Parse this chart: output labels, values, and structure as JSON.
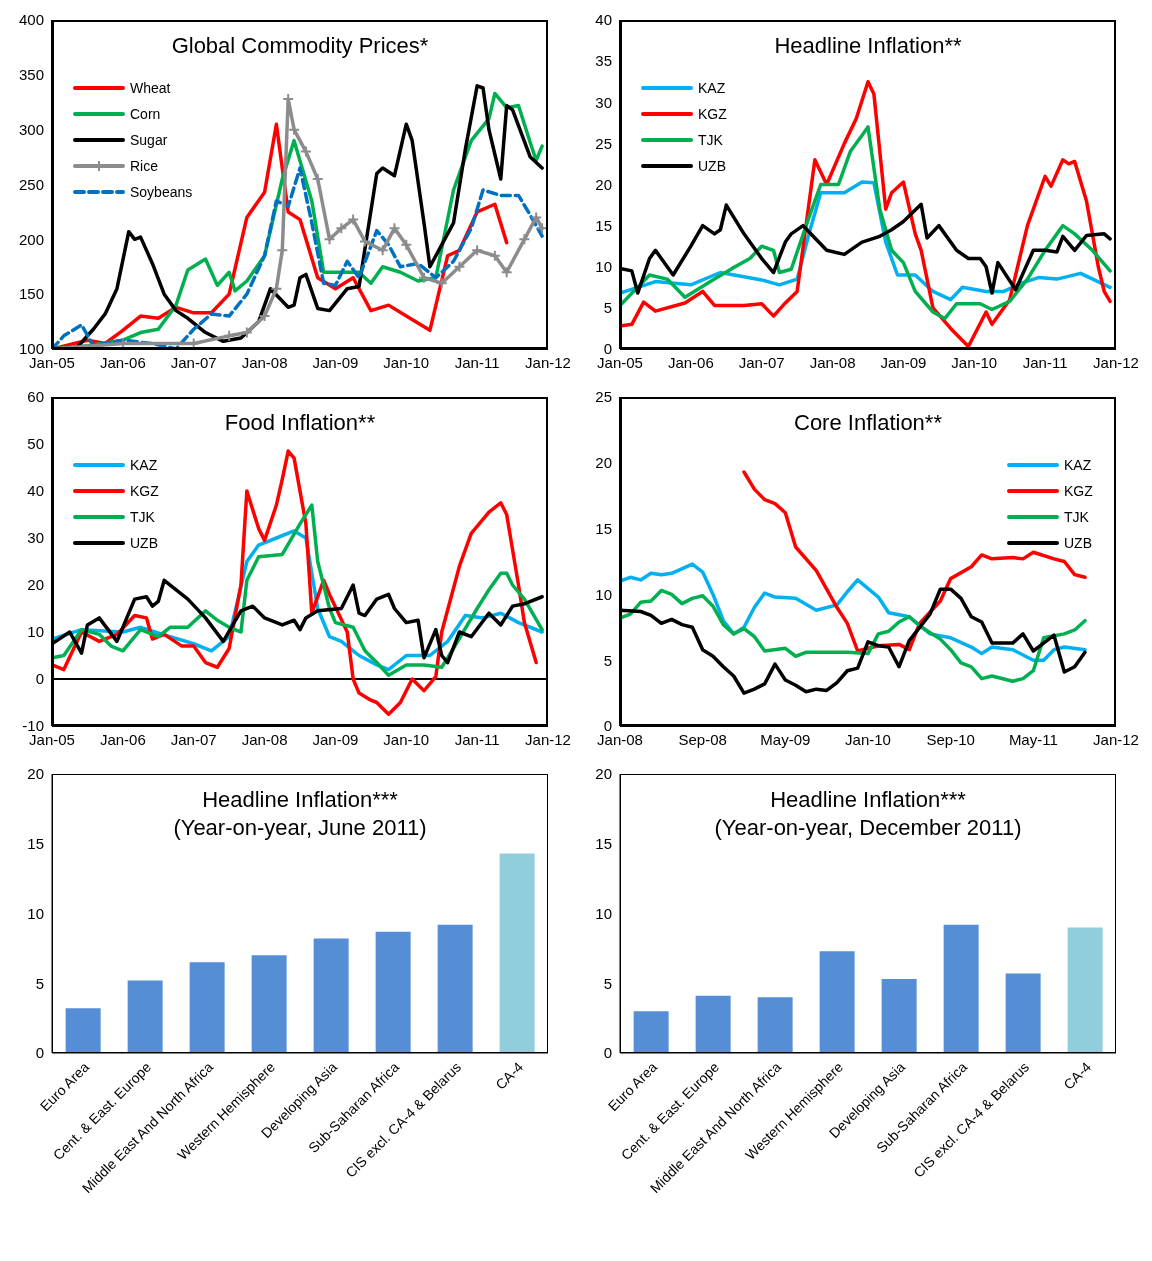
{
  "chart_data": [
    {
      "type": "line",
      "title": "Global Commodity Prices*",
      "xlim": [
        "2005-01",
        "2012-01"
      ],
      "xticks": [
        {
          "value": "2005-01",
          "label": "Jan-05"
        },
        {
          "value": "2006-01",
          "label": "Jan-06"
        },
        {
          "value": "2007-01",
          "label": "Jan-07"
        },
        {
          "value": "2008-01",
          "label": "Jan-08"
        },
        {
          "value": "2009-01",
          "label": "Jan-09"
        },
        {
          "value": "2010-01",
          "label": "Jan-10"
        },
        {
          "value": "2011-01",
          "label": "Jan-11"
        },
        {
          "value": "2012-01",
          "label": "Jan-12"
        }
      ],
      "ylim": [
        100,
        400
      ],
      "yticks": [
        100,
        150,
        200,
        250,
        300,
        350,
        400
      ],
      "grid": false,
      "legend": "top left",
      "marker": "none",
      "line_style": "solid",
      "series": [
        {
          "name": "Wheat",
          "color": "#ff0000",
          "x": [
            "2005-01",
            "2005-07",
            "2005-10",
            "2006-01",
            "2006-04",
            "2006-07",
            "2006-10",
            "2007-01",
            "2007-04",
            "2007-07",
            "2007-10",
            "2008-01",
            "2008-03",
            "2008-05",
            "2008-07",
            "2008-10",
            "2009-01",
            "2009-04",
            "2009-07",
            "2009-10",
            "2010-01",
            "2010-05",
            "2010-08",
            "2010-10",
            "2011-01",
            "2011-04",
            "2011-06"
          ],
          "values": [
            100,
            108,
            105,
            117,
            130,
            128,
            138,
            133,
            133,
            150,
            220,
            243,
            305,
            225,
            218,
            165,
            155,
            165,
            135,
            140,
            130,
            117,
            185,
            190,
            225,
            232,
            197
          ]
        },
        {
          "name": "Corn",
          "color": "#00b050",
          "x": [
            "2005-01",
            "2005-07",
            "2006-01",
            "2006-04",
            "2006-07",
            "2006-10",
            "2006-12",
            "2007-03",
            "2007-05",
            "2007-07",
            "2007-08",
            "2007-10",
            "2008-01",
            "2008-04",
            "2008-06",
            "2008-09",
            "2008-11",
            "2009-02",
            "2009-05",
            "2009-07",
            "2009-09",
            "2009-12",
            "2010-03",
            "2010-06",
            "2010-09",
            "2010-12",
            "2011-03",
            "2011-04",
            "2011-06",
            "2011-08",
            "2011-10",
            "2011-11",
            "2011-12"
          ],
          "values": [
            100,
            103,
            108,
            115,
            118,
            140,
            172,
            182,
            158,
            170,
            153,
            162,
            185,
            255,
            290,
            235,
            170,
            170,
            170,
            160,
            175,
            170,
            162,
            165,
            245,
            290,
            310,
            333,
            320,
            322,
            288,
            272,
            285
          ]
        },
        {
          "name": "Sugar",
          "color": "#000000",
          "x": [
            "2005-01",
            "2005-05",
            "2005-08",
            "2005-10",
            "2005-12",
            "2006-02",
            "2006-03",
            "2006-04",
            "2006-06",
            "2006-08",
            "2006-10",
            "2006-12",
            "2007-03",
            "2007-06",
            "2007-09",
            "2007-12",
            "2008-02",
            "2008-05",
            "2008-06",
            "2008-07",
            "2008-08",
            "2008-10",
            "2008-12",
            "2009-03",
            "2009-05",
            "2009-08",
            "2009-09",
            "2009-11",
            "2010-01",
            "2010-02",
            "2010-04",
            "2010-05",
            "2010-09",
            "2010-11",
            "2011-01",
            "2011-02",
            "2011-03",
            "2011-05",
            "2011-06",
            "2011-07",
            "2011-10",
            "2011-12"
          ],
          "values": [
            100,
            100,
            118,
            132,
            155,
            207,
            200,
            202,
            178,
            150,
            135,
            128,
            115,
            107,
            110,
            125,
            155,
            138,
            140,
            165,
            168,
            137,
            135,
            155,
            157,
            260,
            265,
            258,
            305,
            290,
            215,
            175,
            215,
            282,
            340,
            338,
            300,
            255,
            322,
            318,
            275,
            265
          ]
        },
        {
          "name": "Rice",
          "color": "#8c8c8c",
          "marker": "cross",
          "x": [
            "2005-01",
            "2006-01",
            "2007-01",
            "2007-07",
            "2007-10",
            "2008-01",
            "2008-03",
            "2008-04",
            "2008-05",
            "2008-06",
            "2008-08",
            "2008-10",
            "2008-12",
            "2009-02",
            "2009-04",
            "2009-06",
            "2009-09",
            "2009-11",
            "2010-01",
            "2010-04",
            "2010-07",
            "2010-10",
            "2011-01",
            "2011-04",
            "2011-06",
            "2011-09",
            "2011-11",
            "2011-12"
          ],
          "values": [
            100,
            105,
            105,
            112,
            115,
            130,
            155,
            190,
            328,
            300,
            280,
            255,
            200,
            210,
            218,
            198,
            190,
            210,
            195,
            165,
            160,
            175,
            190,
            185,
            170,
            200,
            220,
            210
          ]
        },
        {
          "name": "Soybeans",
          "color": "#0070c0",
          "line_style": "dashed",
          "x": [
            "2005-01",
            "2005-03",
            "2005-06",
            "2005-08",
            "2006-01",
            "2006-06",
            "2006-10",
            "2007-01",
            "2007-04",
            "2007-07",
            "2007-10",
            "2008-01",
            "2008-03",
            "2008-05",
            "2008-07",
            "2008-09",
            "2008-11",
            "2009-01",
            "2009-03",
            "2009-05",
            "2009-08",
            "2009-10",
            "2009-12",
            "2010-03",
            "2010-06",
            "2010-09",
            "2010-12",
            "2011-02",
            "2011-05",
            "2011-08",
            "2011-10",
            "2011-12"
          ],
          "values": [
            100,
            112,
            122,
            103,
            108,
            105,
            100,
            118,
            132,
            130,
            150,
            185,
            235,
            230,
            265,
            215,
            160,
            158,
            180,
            165,
            208,
            195,
            175,
            178,
            165,
            180,
            210,
            245,
            240,
            240,
            222,
            203
          ]
        }
      ]
    },
    {
      "type": "line",
      "title": "Headline Inflation**",
      "xlim": [
        "2005-01",
        "2012-01"
      ],
      "xticks": [
        {
          "value": "2005-01",
          "label": "Jan-05"
        },
        {
          "value": "2006-01",
          "label": "Jan-06"
        },
        {
          "value": "2007-01",
          "label": "Jan-07"
        },
        {
          "value": "2008-01",
          "label": "Jan-08"
        },
        {
          "value": "2009-01",
          "label": "Jan-09"
        },
        {
          "value": "2010-01",
          "label": "Jan-10"
        },
        {
          "value": "2011-01",
          "label": "Jan-11"
        },
        {
          "value": "2012-01",
          "label": "Jan-12"
        }
      ],
      "ylim": [
        0,
        40
      ],
      "yticks": [
        0,
        5,
        10,
        15,
        20,
        25,
        30,
        35,
        40
      ],
      "grid": false,
      "legend": "top left",
      "marker": "none",
      "line_style": "solid",
      "series": [
        {
          "name": "KAZ",
          "color": "#00b0f0",
          "x": [
            "2005-01",
            "2005-07",
            "2006-01",
            "2006-06",
            "2007-01",
            "2007-04",
            "2007-07",
            "2007-09",
            "2007-11",
            "2008-03",
            "2008-06",
            "2008-08",
            "2008-10",
            "2008-12",
            "2009-03",
            "2009-06",
            "2009-09",
            "2009-11",
            "2010-03",
            "2010-06",
            "2010-09",
            "2010-12",
            "2011-03",
            "2011-07",
            "2011-12"
          ],
          "values": [
            6.8,
            8.2,
            7.8,
            9.3,
            8.4,
            7.8,
            8.5,
            14,
            19,
            19,
            20.3,
            20.2,
            13,
            9,
            9,
            7,
            6,
            7.5,
            7,
            7,
            8,
            8.7,
            8.5,
            9.2,
            7.5
          ]
        },
        {
          "name": "KGZ",
          "color": "#ff0000",
          "x": [
            "2005-01",
            "2005-03",
            "2005-05",
            "2005-07",
            "2005-12",
            "2006-03",
            "2006-05",
            "2006-10",
            "2007-01",
            "2007-03",
            "2007-05",
            "2007-07",
            "2007-10",
            "2007-12",
            "2008-03",
            "2008-05",
            "2008-07",
            "2008-08",
            "2008-10",
            "2008-11",
            "2009-01",
            "2009-03",
            "2009-04",
            "2009-06",
            "2009-09",
            "2009-12",
            "2010-03",
            "2010-04",
            "2010-07",
            "2010-10",
            "2011-01",
            "2011-02",
            "2011-04",
            "2011-05",
            "2011-06",
            "2011-08",
            "2011-10",
            "2011-11",
            "2011-12"
          ],
          "values": [
            2.8,
            3,
            5.7,
            4.6,
            5.6,
            7,
            5.3,
            5.3,
            5.5,
            4,
            5.6,
            7,
            23,
            20,
            25,
            28,
            32.5,
            31,
            17,
            19,
            20.3,
            14,
            12,
            5,
            2.5,
            0.3,
            4.5,
            3,
            6,
            15,
            21,
            19.8,
            23,
            22.5,
            22.8,
            18,
            10,
            7,
            5.8
          ]
        },
        {
          "name": "TJK",
          "color": "#00b050",
          "x": [
            "2005-01",
            "2005-06",
            "2005-09",
            "2005-12",
            "2006-05",
            "2006-08",
            "2006-11",
            "2007-01",
            "2007-03",
            "2007-04",
            "2007-06",
            "2007-09",
            "2007-11",
            "2008-02",
            "2008-04",
            "2008-06",
            "2008-07",
            "2008-09",
            "2008-11",
            "2009-01",
            "2009-03",
            "2009-06",
            "2009-08",
            "2009-10",
            "2010-02",
            "2010-04",
            "2010-07",
            "2010-10",
            "2011-01",
            "2011-04",
            "2011-06",
            "2011-09",
            "2011-12"
          ],
          "values": [
            5.3,
            9,
            8.5,
            6.3,
            8.5,
            9.8,
            11,
            12.5,
            12,
            9.3,
            9.7,
            16,
            20,
            20,
            24,
            26,
            27,
            17,
            12,
            10.5,
            7,
            4.5,
            3.7,
            5.5,
            5.5,
            4.8,
            5.8,
            8.5,
            12,
            15,
            14,
            12,
            9.5
          ]
        },
        {
          "name": "UZB",
          "color": "#000000",
          "x": [
            "2005-01",
            "2005-03",
            "2005-04",
            "2005-06",
            "2005-07",
            "2005-10",
            "2006-01",
            "2006-03",
            "2006-05",
            "2006-06",
            "2006-07",
            "2006-10",
            "2007-01",
            "2007-03",
            "2007-05",
            "2007-06",
            "2007-08",
            "2007-10",
            "2007-12",
            "2008-03",
            "2008-05",
            "2008-06",
            "2008-09",
            "2008-11",
            "2009-01",
            "2009-04",
            "2009-05",
            "2009-07",
            "2009-10",
            "2009-12",
            "2010-02",
            "2010-03",
            "2010-04",
            "2010-05",
            "2010-08",
            "2010-11",
            "2011-01",
            "2011-03",
            "2011-04",
            "2011-06",
            "2011-08",
            "2011-11",
            "2011-12"
          ],
          "values": [
            9.8,
            9.5,
            6.8,
            11,
            12,
            9,
            12.5,
            15,
            14,
            14.5,
            17.5,
            14,
            11,
            9.3,
            13,
            14,
            15,
            13.5,
            12,
            11.5,
            12.5,
            13,
            13.7,
            14.5,
            15.5,
            17.6,
            13.5,
            15,
            12,
            11,
            11,
            10,
            6.8,
            10.5,
            7.2,
            12,
            12,
            11.8,
            13.7,
            12,
            13.8,
            14,
            13.4
          ]
        }
      ]
    },
    {
      "type": "line",
      "title": "Food Inflation**",
      "xlim": [
        "2005-01",
        "2012-01"
      ],
      "xticks": [
        {
          "value": "2005-01",
          "label": "Jan-05"
        },
        {
          "value": "2006-01",
          "label": "Jan-06"
        },
        {
          "value": "2007-01",
          "label": "Jan-07"
        },
        {
          "value": "2008-01",
          "label": "Jan-08"
        },
        {
          "value": "2009-01",
          "label": "Jan-09"
        },
        {
          "value": "2010-01",
          "label": "Jan-10"
        },
        {
          "value": "2011-01",
          "label": "Jan-11"
        },
        {
          "value": "2012-01",
          "label": "Jan-12"
        }
      ],
      "ylim": [
        -10,
        60
      ],
      "yticks": [
        -10,
        0,
        10,
        20,
        30,
        40,
        50,
        60
      ],
      "grid": false,
      "legend": "top left",
      "marker": "none",
      "line_style": "solid",
      "ref_lines": [
        {
          "axis": "y",
          "value": 0,
          "color": "#000000",
          "line_style": "solid"
        }
      ],
      "series": [
        {
          "name": "KAZ",
          "color": "#00b0f0",
          "x": [
            "2005-01",
            "2005-06",
            "2006-01",
            "2006-04",
            "2006-09",
            "2007-01",
            "2007-04",
            "2007-07",
            "2007-10",
            "2007-12",
            "2008-03",
            "2008-06",
            "2008-08",
            "2008-10",
            "2008-12",
            "2009-02",
            "2009-05",
            "2009-08",
            "2009-10",
            "2010-01",
            "2010-05",
            "2010-08",
            "2010-11",
            "2011-02",
            "2011-05",
            "2011-08",
            "2011-12"
          ],
          "values": [
            8.5,
            10.5,
            10,
            11,
            9,
            7.5,
            6,
            9,
            25,
            28.5,
            30,
            31.5,
            30,
            15,
            9,
            8,
            5,
            3,
            2,
            5,
            5,
            8,
            13.5,
            13,
            14,
            12,
            10
          ]
        },
        {
          "name": "KGZ",
          "color": "#ff0000",
          "x": [
            "2005-01",
            "2005-03",
            "2005-06",
            "2005-09",
            "2005-12",
            "2006-03",
            "2006-05",
            "2006-06",
            "2006-08",
            "2006-11",
            "2007-01",
            "2007-03",
            "2007-05",
            "2007-07",
            "2007-09",
            "2007-10",
            "2007-12",
            "2008-01",
            "2008-03",
            "2008-04",
            "2008-05",
            "2008-06",
            "2008-08",
            "2008-09",
            "2008-11",
            "2008-12",
            "2009-03",
            "2009-04",
            "2009-05",
            "2009-07",
            "2009-08",
            "2009-10",
            "2009-12",
            "2010-02",
            "2010-04",
            "2010-06",
            "2010-07",
            "2010-10",
            "2010-12",
            "2011-03",
            "2011-05",
            "2011-06",
            "2011-08",
            "2011-09",
            "2011-11"
          ],
          "values": [
            3,
            2,
            10,
            8,
            9.5,
            13.5,
            13,
            8.5,
            9.5,
            7,
            7,
            3.5,
            2.5,
            6.5,
            20,
            40,
            32,
            29.5,
            37,
            42.5,
            48.5,
            47,
            33,
            14,
            21,
            18,
            10,
            0,
            -3,
            -4.5,
            -5,
            -7.5,
            -5,
            0,
            -2.5,
            0.5,
            10,
            24,
            31,
            35.5,
            37.5,
            35,
            20,
            12,
            3.5
          ]
        },
        {
          "name": "TJK",
          "color": "#00b050",
          "x": [
            "2005-01",
            "2005-03",
            "2005-06",
            "2005-09",
            "2005-11",
            "2006-01",
            "2006-04",
            "2006-07",
            "2006-09",
            "2006-12",
            "2007-03",
            "2007-05",
            "2007-07",
            "2007-09",
            "2007-10",
            "2007-12",
            "2008-04",
            "2008-07",
            "2008-09",
            "2008-10",
            "2008-12",
            "2009-01",
            "2009-04",
            "2009-06",
            "2009-08",
            "2009-10",
            "2010-01",
            "2010-04",
            "2010-07",
            "2010-09",
            "2011-01",
            "2011-03",
            "2011-05",
            "2011-06",
            "2011-07",
            "2011-09",
            "2011-12"
          ],
          "values": [
            4.5,
            5,
            10.5,
            9.5,
            7,
            6,
            10.5,
            9,
            11,
            11,
            14.5,
            12.5,
            11,
            10,
            21,
            26,
            26.5,
            33,
            37,
            25,
            15,
            12,
            11,
            6,
            3.5,
            0.8,
            3,
            3,
            2.5,
            6.5,
            15,
            19,
            22.5,
            22.5,
            20,
            17,
            10.5
          ]
        },
        {
          "name": "UZB",
          "color": "#000000",
          "x": [
            "2005-01",
            "2005-04",
            "2005-06",
            "2005-07",
            "2005-09",
            "2005-12",
            "2006-03",
            "2006-05",
            "2006-06",
            "2006-07",
            "2006-08",
            "2006-12",
            "2007-03",
            "2007-06",
            "2007-09",
            "2007-11",
            "2008-01",
            "2008-04",
            "2008-06",
            "2008-07",
            "2008-08",
            "2008-10",
            "2009-02",
            "2009-04",
            "2009-05",
            "2009-06",
            "2009-08",
            "2009-10",
            "2009-11",
            "2010-01",
            "2010-03",
            "2010-04",
            "2010-06",
            "2010-07",
            "2010-08",
            "2010-10",
            "2010-12",
            "2011-03",
            "2011-05",
            "2011-07",
            "2011-09",
            "2011-12"
          ],
          "values": [
            7.5,
            10,
            5.5,
            11.5,
            13,
            8,
            17,
            17.5,
            15.5,
            16.5,
            21,
            17,
            13,
            8,
            14.5,
            15.5,
            13,
            11.5,
            12.5,
            10.5,
            13,
            14.5,
            15,
            20,
            14,
            13.5,
            17,
            18,
            15,
            12,
            12.5,
            4.5,
            10.5,
            5,
            3.5,
            10,
            9,
            14,
            11.5,
            15.5,
            16,
            17.5
          ]
        }
      ]
    },
    {
      "type": "line",
      "title": "Core Inflation**",
      "xlim": [
        "2008-01",
        "2012-01"
      ],
      "xticks": [
        {
          "value": "2008-01",
          "label": "Jan-08"
        },
        {
          "value": "2008-09",
          "label": "Sep-08"
        },
        {
          "value": "2009-05",
          "label": "May-09"
        },
        {
          "value": "2010-01",
          "label": "Jan-10"
        },
        {
          "value": "2010-09",
          "label": "Sep-10"
        },
        {
          "value": "2011-05",
          "label": "May-11"
        },
        {
          "value": "2012-01",
          "label": "Jan-12"
        }
      ],
      "ylim": [
        0,
        25
      ],
      "yticks": [
        0,
        5,
        10,
        15,
        20,
        25
      ],
      "grid": false,
      "legend": "top right",
      "marker": "none",
      "line_style": "solid",
      "series": [
        {
          "name": "KAZ",
          "color": "#00b0f0",
          "x": [
            "2008-01",
            "2008-02",
            "2008-03",
            "2008-04",
            "2008-05",
            "2008-06",
            "2008-08",
            "2008-09",
            "2008-10",
            "2008-11",
            "2008-12",
            "2009-01",
            "2009-02",
            "2009-03",
            "2009-04",
            "2009-06",
            "2009-08",
            "2009-10",
            "2009-11",
            "2009-12",
            "2010-02",
            "2010-03",
            "2010-05",
            "2010-07",
            "2010-09",
            "2010-11",
            "2010-12",
            "2011-01",
            "2011-03",
            "2011-05",
            "2011-06",
            "2011-07",
            "2011-08",
            "2011-10"
          ],
          "values": [
            11,
            11.3,
            11.1,
            11.6,
            11.5,
            11.6,
            12.3,
            11.7,
            10,
            8,
            7,
            7.5,
            9,
            10.1,
            9.8,
            9.7,
            8.8,
            9.2,
            10.2,
            11.1,
            9.8,
            8.6,
            8.3,
            7,
            6.7,
            6,
            5.5,
            6,
            5.8,
            5,
            5,
            5.8,
            6,
            5.8
          ]
        },
        {
          "name": "KGZ",
          "color": "#ff0000",
          "x": [
            "2009-01",
            "2009-02",
            "2009-03",
            "2009-04",
            "2009-05",
            "2009-06",
            "2009-08",
            "2009-10",
            "2009-11",
            "2009-12",
            "2010-02",
            "2010-04",
            "2010-05",
            "2010-06",
            "2010-08",
            "2010-09",
            "2010-11",
            "2010-12",
            "2011-01",
            "2011-03",
            "2011-04",
            "2011-05",
            "2011-07",
            "2011-08",
            "2011-09",
            "2011-10"
          ],
          "values": [
            19.3,
            18,
            17.2,
            16.9,
            16.2,
            13.6,
            11.8,
            9,
            7.8,
            5.7,
            6.1,
            6.2,
            5.8,
            7.8,
            9.5,
            11.2,
            12.1,
            13,
            12.7,
            12.8,
            12.7,
            13.2,
            12.7,
            12.5,
            11.5,
            11.3
          ]
        },
        {
          "name": "TJK",
          "color": "#00b050",
          "x": [
            "2008-01",
            "2008-02",
            "2008-03",
            "2008-04",
            "2008-05",
            "2008-06",
            "2008-07",
            "2008-08",
            "2008-09",
            "2008-10",
            "2008-11",
            "2008-12",
            "2009-01",
            "2009-02",
            "2009-03",
            "2009-05",
            "2009-06",
            "2009-07",
            "2009-11",
            "2010-01",
            "2010-02",
            "2010-03",
            "2010-04",
            "2010-05",
            "2010-06",
            "2010-08",
            "2010-09",
            "2010-10",
            "2010-11",
            "2010-12",
            "2011-01",
            "2011-03",
            "2011-04",
            "2011-05",
            "2011-06",
            "2011-08",
            "2011-09",
            "2011-10"
          ],
          "values": [
            8.2,
            8.5,
            9.4,
            9.5,
            10.3,
            10,
            9.3,
            9.7,
            9.9,
            9.1,
            7.7,
            7,
            7.4,
            6.8,
            5.7,
            5.9,
            5.3,
            5.6,
            5.6,
            5.5,
            7,
            7.2,
            7.9,
            8.3,
            7.6,
            6.6,
            5.8,
            4.8,
            4.5,
            3.6,
            3.8,
            3.4,
            3.6,
            4.2,
            6.7,
            7,
            7.3,
            8
          ]
        },
        {
          "name": "UZB",
          "color": "#000000",
          "x": [
            "2008-01",
            "2008-03",
            "2008-04",
            "2008-05",
            "2008-06",
            "2008-07",
            "2008-08",
            "2008-09",
            "2008-10",
            "2008-11",
            "2008-12",
            "2009-01",
            "2009-02",
            "2009-03",
            "2009-04",
            "2009-05",
            "2009-06",
            "2009-07",
            "2009-08",
            "2009-09",
            "2009-10",
            "2009-11",
            "2009-12",
            "2010-01",
            "2010-02",
            "2010-03",
            "2010-04",
            "2010-05",
            "2010-06",
            "2010-07",
            "2010-08",
            "2010-09",
            "2010-10",
            "2010-11",
            "2010-12",
            "2011-01",
            "2011-02",
            "2011-03",
            "2011-04",
            "2011-05",
            "2011-06",
            "2011-07",
            "2011-08",
            "2011-09",
            "2011-10"
          ],
          "values": [
            8.8,
            8.7,
            8.4,
            7.8,
            8.1,
            7.7,
            7.5,
            5.8,
            5.3,
            4.5,
            3.8,
            2.5,
            2.8,
            3.2,
            4.7,
            3.5,
            3.1,
            2.6,
            2.8,
            2.7,
            3.3,
            4.2,
            4.4,
            6.4,
            6.1,
            6,
            4.5,
            6.5,
            7.5,
            8.5,
            10.4,
            10.4,
            9.7,
            8.3,
            7.9,
            6.3,
            6.3,
            6.3,
            7,
            5.7,
            6.3,
            6.9,
            4.1,
            4.5,
            5.6
          ]
        }
      ]
    },
    {
      "type": "bar",
      "title": "Headline Inflation***",
      "subtitle": "(Year-on-year, June 2011)",
      "categories": [
        "Euro Area",
        "Cent. & East. Europe",
        "Middle East And North Africa",
        "Western Hemisphere",
        "Developing Asia",
        "Sub-Saharan Africa",
        "CIS excl. CA-4 & Belarus",
        "CA-4"
      ],
      "values": [
        3.2,
        5.2,
        6.5,
        7.0,
        8.2,
        8.7,
        9.2,
        14.3
      ],
      "colors": [
        "#558ed5",
        "#558ed5",
        "#558ed5",
        "#558ed5",
        "#558ed5",
        "#558ed5",
        "#558ed5",
        "#92cddc"
      ],
      "ylim": [
        0,
        20
      ],
      "yticks": [
        0,
        5,
        10,
        15,
        20
      ],
      "grid": false,
      "legend": false
    },
    {
      "type": "bar",
      "title": "Headline Inflation***",
      "subtitle": "(Year-on-year, December 2011)",
      "categories": [
        "Euro Area",
        "Cent. & East. Europe",
        "Middle East And North Africa",
        "Western Hemisphere",
        "Developing Asia",
        "Sub-Saharan Africa",
        "CIS excl. CA-4 & Belarus",
        "CA-4"
      ],
      "values": [
        3.0,
        4.1,
        4.0,
        7.3,
        5.3,
        9.2,
        5.7,
        9.0
      ],
      "colors": [
        "#558ed5",
        "#558ed5",
        "#558ed5",
        "#558ed5",
        "#558ed5",
        "#558ed5",
        "#558ed5",
        "#92cddc"
      ],
      "ylim": [
        0,
        20
      ],
      "yticks": [
        0,
        5,
        10,
        15,
        20
      ],
      "grid": false,
      "legend": false
    }
  ]
}
